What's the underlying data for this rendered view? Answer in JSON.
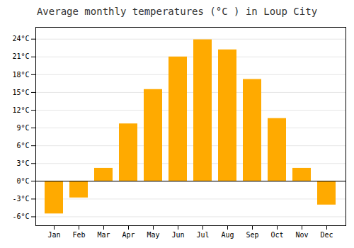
{
  "chart_data": {
    "type": "bar",
    "title": "Average monthly temperatures (°C ) in Loup City",
    "categories": [
      "Jan",
      "Feb",
      "Mar",
      "Apr",
      "May",
      "Jun",
      "Jul",
      "Aug",
      "Sep",
      "Oct",
      "Nov",
      "Dec"
    ],
    "values": [
      -5.5,
      -2.8,
      2.2,
      9.7,
      15.5,
      21.0,
      23.9,
      22.2,
      17.2,
      10.6,
      2.2,
      -4.0
    ],
    "color": "#FFAA00",
    "ylim": [
      -7.5,
      26
    ],
    "yticks": [
      {
        "value": -6,
        "label": "-6°C"
      },
      {
        "value": -3,
        "label": "-3°C"
      },
      {
        "value": 0,
        "label": "0°C"
      },
      {
        "value": 3,
        "label": "3°C"
      },
      {
        "value": 6,
        "label": "6°C"
      },
      {
        "value": 9,
        "label": "9°C"
      },
      {
        "value": 12,
        "label": "12°C"
      },
      {
        "value": 15,
        "label": "15°C"
      },
      {
        "value": 18,
        "label": "18°C"
      },
      {
        "value": 21,
        "label": "21°C"
      },
      {
        "value": 24,
        "label": "24°C"
      }
    ],
    "grid": true
  }
}
